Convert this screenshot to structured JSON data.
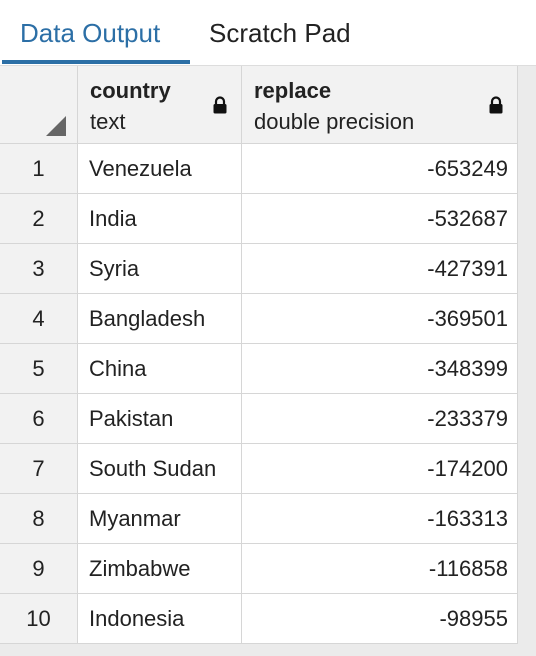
{
  "tabs": [
    {
      "label": "Data Output",
      "active": true
    },
    {
      "label": "Scratch Pad",
      "active": false
    }
  ],
  "columns": [
    {
      "name": "country",
      "type": "text",
      "icon": "lock-icon"
    },
    {
      "name": "replace",
      "type": "double precision",
      "icon": "lock-icon"
    }
  ],
  "rows": [
    {
      "n": "1",
      "country": "Venezuela",
      "value": "-653249"
    },
    {
      "n": "2",
      "country": "India",
      "value": "-532687"
    },
    {
      "n": "3",
      "country": "Syria",
      "value": "-427391"
    },
    {
      "n": "4",
      "country": "Bangladesh",
      "value": "-369501"
    },
    {
      "n": "5",
      "country": "China",
      "value": "-348399"
    },
    {
      "n": "6",
      "country": "Pakistan",
      "value": "-233379"
    },
    {
      "n": "7",
      "country": "South Sudan",
      "value": "-174200"
    },
    {
      "n": "8",
      "country": "Myanmar",
      "value": "-163313"
    },
    {
      "n": "9",
      "country": "Zimbabwe",
      "value": "-116858"
    },
    {
      "n": "10",
      "country": "Indonesia",
      "value": "-98955"
    }
  ],
  "colors": {
    "accent": "#2c6fa6",
    "border": "#d6d6d6",
    "header_bg": "#f2f2f2"
  }
}
